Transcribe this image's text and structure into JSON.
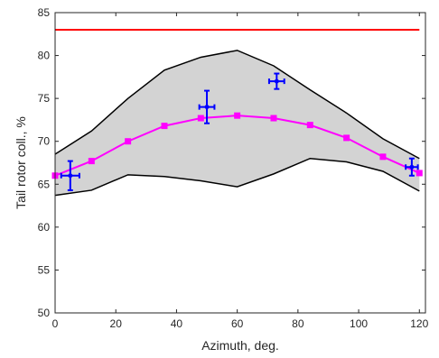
{
  "chart_data": {
    "type": "line",
    "xlabel": "Azimuth, deg.",
    "ylabel": "Tail rotor coll., %",
    "xlim": [
      0,
      122
    ],
    "ylim": [
      50,
      85
    ],
    "xticks": [
      0,
      20,
      40,
      60,
      80,
      100,
      120
    ],
    "yticks": [
      50,
      55,
      60,
      65,
      70,
      75,
      80,
      85
    ],
    "grid": false,
    "colors": {
      "band_fill": "#d3d3d3",
      "band_edge": "#000000",
      "model_line": "#ff00ff",
      "limit_line": "#ff0000",
      "flight_data": "#0000ff"
    },
    "limit_line": {
      "y": 83,
      "x": [
        0,
        120
      ]
    },
    "band_upper": {
      "x": [
        0,
        12,
        24,
        36,
        48,
        60,
        72,
        84,
        96,
        108,
        120
      ],
      "y": [
        68.5,
        71.2,
        75.0,
        78.3,
        79.8,
        80.6,
        78.8,
        76.0,
        73.3,
        70.3,
        68.0
      ]
    },
    "band_lower": {
      "x": [
        0,
        12,
        24,
        36,
        48,
        60,
        72,
        84,
        96,
        108,
        120
      ],
      "y": [
        63.7,
        64.3,
        66.1,
        65.9,
        65.4,
        64.7,
        66.2,
        68.0,
        67.6,
        66.5,
        64.2
      ]
    },
    "series": [
      {
        "x": [
          0,
          12,
          24,
          36,
          48,
          60,
          72,
          84,
          96,
          108,
          120
        ],
        "values": [
          66.0,
          67.7,
          70.0,
          71.8,
          72.7,
          73.0,
          72.7,
          71.9,
          70.4,
          68.2,
          66.3
        ]
      }
    ],
    "flight_points": [
      {
        "x": 5,
        "y": 66.0,
        "xerr": 3,
        "yerr": 1.7
      },
      {
        "x": 50,
        "y": 74.0,
        "xerr": 2.5,
        "yerr": 1.9
      },
      {
        "x": 73,
        "y": 77.0,
        "xerr": 2.5,
        "yerr": 0.9
      },
      {
        "x": 117.5,
        "y": 67.0,
        "xerr": 2,
        "yerr": 1.0
      }
    ]
  }
}
